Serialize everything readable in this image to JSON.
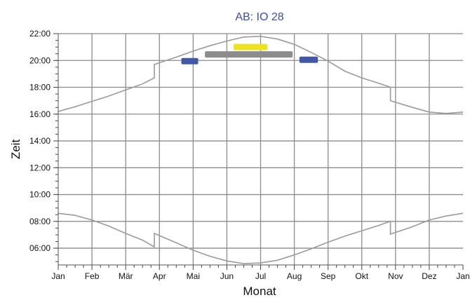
{
  "chart_data": {
    "type": "line",
    "title": "AB: IO 28",
    "xlabel": "Monat",
    "ylabel": "Zeit",
    "x_tick_labels": [
      "Jan",
      "Feb",
      "Mär",
      "Apr",
      "Mai",
      "Jun",
      "Jul",
      "Aug",
      "Sep",
      "Okt",
      "Nov",
      "Dez",
      "Jan"
    ],
    "y_tick_labels": [
      "06:00",
      "08:00",
      "10:00",
      "12:00",
      "14:00",
      "16:00",
      "18:00",
      "20:00",
      "22:00"
    ],
    "x_range_months": [
      0,
      12
    ],
    "y_range_hours": [
      4.75,
      22.0
    ],
    "grid": true,
    "series": [
      {
        "color": "#9b9b9b",
        "points": [
          [
            0,
            16.2
          ],
          [
            0.5,
            16.55
          ],
          [
            1,
            16.95
          ],
          [
            1.5,
            17.35
          ],
          [
            2,
            17.8
          ],
          [
            2.5,
            18.25
          ],
          [
            2.85,
            18.7
          ],
          [
            2.85,
            19.7
          ],
          [
            3.5,
            20.25
          ],
          [
            4,
            20.7
          ],
          [
            4.5,
            21.1
          ],
          [
            5,
            21.45
          ],
          [
            5.5,
            21.75
          ],
          [
            6,
            21.8
          ],
          [
            6.5,
            21.6
          ],
          [
            7,
            21.2
          ],
          [
            7.5,
            20.6
          ],
          [
            8,
            19.95
          ],
          [
            8.5,
            19.2
          ],
          [
            9,
            18.7
          ],
          [
            9.5,
            18.3
          ],
          [
            9.85,
            18.0
          ],
          [
            9.85,
            17.0
          ],
          [
            10.5,
            16.5
          ],
          [
            11,
            16.15
          ],
          [
            11.5,
            16.05
          ],
          [
            12,
            16.15
          ]
        ]
      },
      {
        "color": "#9b9b9b",
        "points": [
          [
            0,
            8.6
          ],
          [
            0.5,
            8.45
          ],
          [
            1,
            8.1
          ],
          [
            1.5,
            7.65
          ],
          [
            2,
            7.1
          ],
          [
            2.5,
            6.6
          ],
          [
            2.85,
            6.1
          ],
          [
            2.85,
            7.1
          ],
          [
            3.5,
            6.4
          ],
          [
            4,
            5.85
          ],
          [
            4.5,
            5.4
          ],
          [
            5,
            5.05
          ],
          [
            5.5,
            4.85
          ],
          [
            6,
            4.9
          ],
          [
            6.5,
            5.1
          ],
          [
            7,
            5.5
          ],
          [
            7.5,
            5.95
          ],
          [
            8,
            6.45
          ],
          [
            8.5,
            6.9
          ],
          [
            9,
            7.3
          ],
          [
            9.5,
            7.7
          ],
          [
            9.85,
            8.0
          ],
          [
            9.85,
            7.05
          ],
          [
            10.5,
            7.6
          ],
          [
            11,
            8.1
          ],
          [
            11.5,
            8.4
          ],
          [
            12,
            8.6
          ]
        ]
      }
    ],
    "bands": [
      {
        "color": "#4158a8",
        "x0": 3.65,
        "x1": 4.15,
        "y": 19.95
      },
      {
        "color": "#8c8c8c",
        "x0": 4.35,
        "x1": 6.95,
        "y": 20.45
      },
      {
        "color": "#f0e21e",
        "x0": 5.2,
        "x1": 6.2,
        "y": 21.0
      },
      {
        "color": "#4158a8",
        "x0": 7.15,
        "x1": 7.7,
        "y": 20.05
      }
    ]
  }
}
